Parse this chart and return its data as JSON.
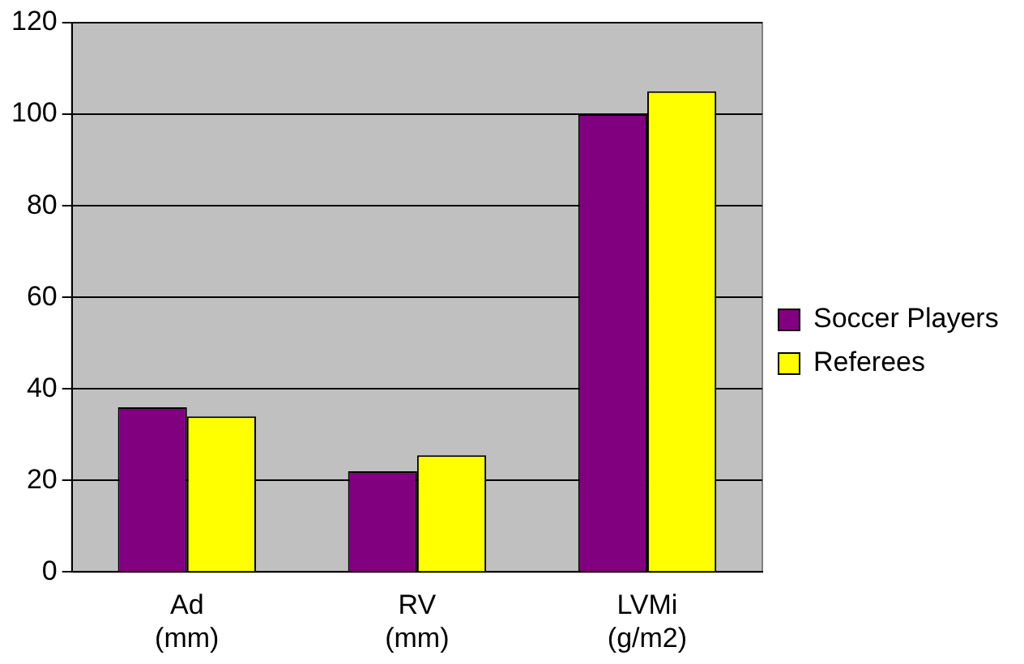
{
  "chart_data": {
    "type": "bar",
    "categories": [
      "Ad (mm)",
      "RV (mm)",
      "LVMi (g/m2)"
    ],
    "series": [
      {
        "name": "Soccer Players",
        "color": "#800080",
        "values": [
          36,
          22,
          100
        ]
      },
      {
        "name": "Referees",
        "color": "#ffff00",
        "values": [
          34,
          25.5,
          105
        ]
      }
    ],
    "ylim": [
      0,
      120
    ],
    "yticks": [
      0,
      20,
      40,
      60,
      80,
      100,
      120
    ],
    "grid": "y",
    "legend": "right"
  }
}
